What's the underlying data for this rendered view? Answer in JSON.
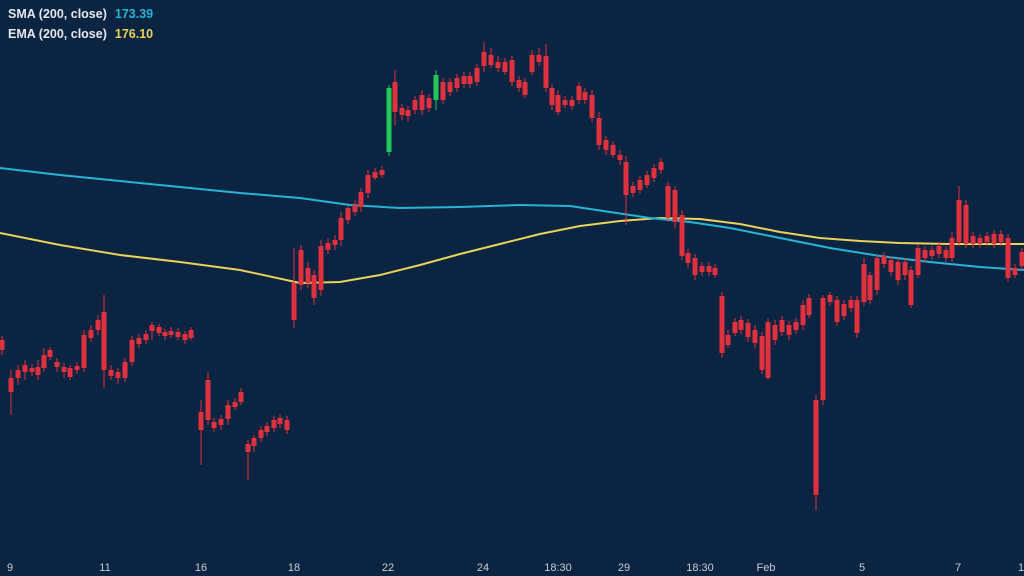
{
  "legend": {
    "sma_label": "SMA (200, close)",
    "sma_value": "173.39",
    "ema_label": "EMA (200, close)",
    "ema_value": "176.10"
  },
  "colors": {
    "background": "#0b2441",
    "up": "#22c75a",
    "down": "#e0313e",
    "sma": "#27b5d6",
    "ema": "#ead35a",
    "axis_text": "#c9ced6"
  },
  "chart_data": {
    "type": "candlestick",
    "title": "",
    "x_ticks": [
      "9",
      "11",
      "16",
      "18",
      "22",
      "24",
      "18:30",
      "29",
      "18:30",
      "Feb",
      "5",
      "7",
      "1"
    ],
    "grid": false,
    "legend_position": "top-left",
    "series": [
      {
        "name": "SMA (200, close)",
        "last_value": 173.39
      },
      {
        "name": "EMA (200, close)",
        "last_value": 176.1
      }
    ]
  }
}
